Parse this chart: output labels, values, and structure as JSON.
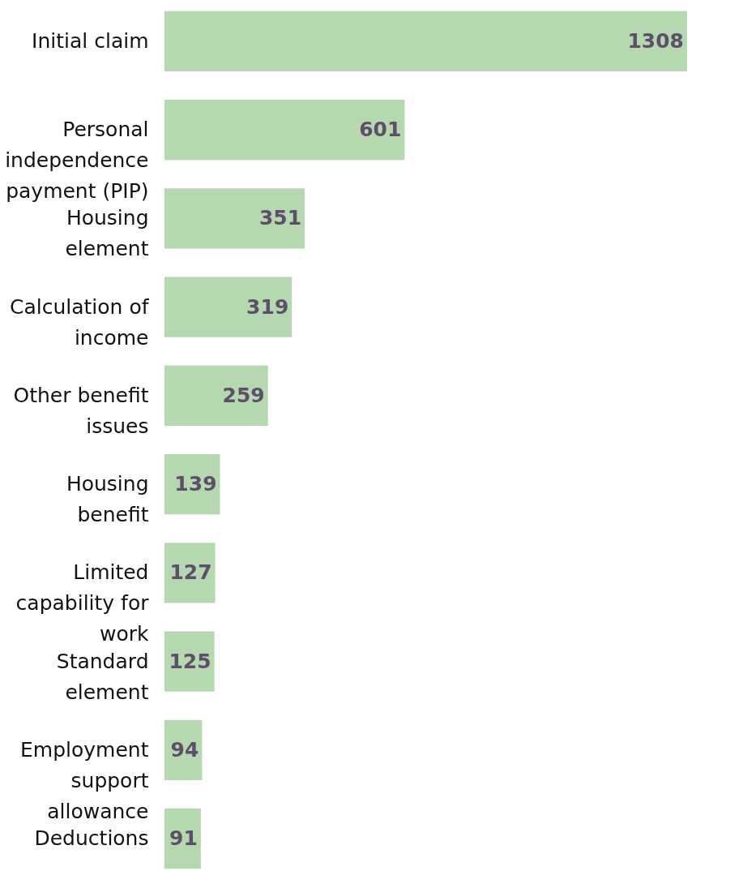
{
  "chart_data": {
    "type": "bar",
    "orientation": "horizontal",
    "categories": [
      "Initial claim",
      "Personal independence payment (PIP)",
      "Housing element",
      "Calculation of income",
      "Other benefit issues",
      "Housing benefit",
      "Limited capability for work",
      "Standard element",
      "Employment support allowance",
      "Deductions"
    ],
    "values": [
      1308,
      601,
      351,
      319,
      259,
      139,
      127,
      125,
      94,
      91
    ],
    "color": "#b5d8b0",
    "data_labels": true
  }
}
